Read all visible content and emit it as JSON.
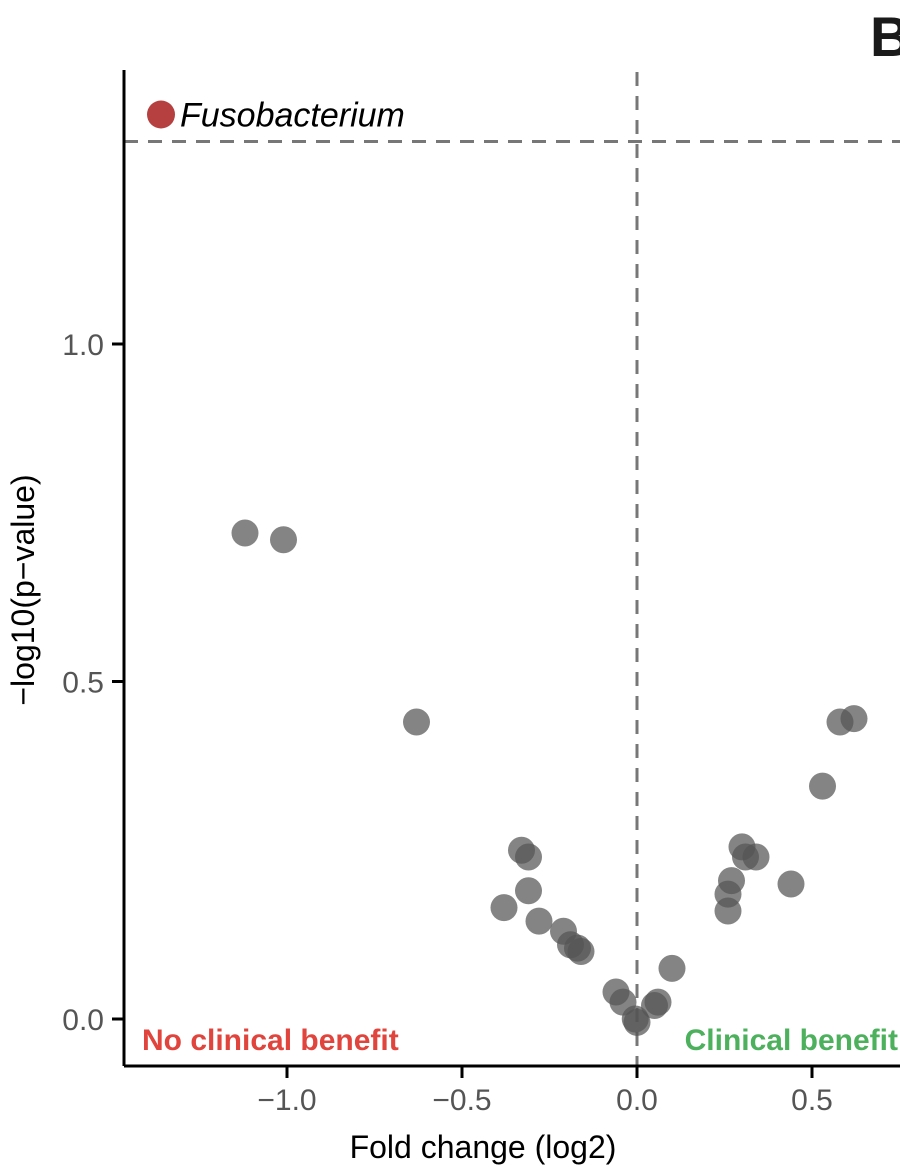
{
  "panel_label": "B",
  "chart_data": {
    "type": "scatter",
    "xlabel": "Fold change (log2)",
    "ylabel": "−log10(p−value)",
    "xlim": [
      -1.45,
      0.72
    ],
    "ylim": [
      -0.07,
      1.42
    ],
    "x_ticks": [
      -1.0,
      -0.5,
      0.0,
      0.5
    ],
    "x_tick_labels": [
      "−1.0",
      "−0.5",
      "0.0",
      "0.5"
    ],
    "y_ticks": [
      0.0,
      0.5,
      1.0
    ],
    "y_tick_labels": [
      "0.0",
      "0.5",
      "1.0"
    ],
    "grid": false,
    "reference_lines": {
      "vertical_x": 0.0,
      "horizontal_y": 1.3
    },
    "point_color": "#555555",
    "highlight_color": "#b5403f",
    "highlight": {
      "label": "Fusobacterium",
      "x": -1.36,
      "y": 1.34
    },
    "annotations": [
      {
        "text": "No clinical benefit",
        "color": "#e0443c",
        "position": "bottom-left"
      },
      {
        "text": "Clinical benefit",
        "color": "#4cb05c",
        "position": "bottom-right"
      }
    ],
    "points": [
      {
        "x": -1.12,
        "y": 0.72
      },
      {
        "x": -1.01,
        "y": 0.71
      },
      {
        "x": -0.63,
        "y": 0.44
      },
      {
        "x": -0.38,
        "y": 0.165
      },
      {
        "x": -0.33,
        "y": 0.25
      },
      {
        "x": -0.31,
        "y": 0.24
      },
      {
        "x": -0.31,
        "y": 0.19
      },
      {
        "x": -0.28,
        "y": 0.145
      },
      {
        "x": -0.21,
        "y": 0.13
      },
      {
        "x": -0.19,
        "y": 0.11
      },
      {
        "x": -0.17,
        "y": 0.105
      },
      {
        "x": -0.16,
        "y": 0.1
      },
      {
        "x": -0.06,
        "y": 0.04
      },
      {
        "x": -0.04,
        "y": 0.025
      },
      {
        "x": -0.005,
        "y": 0.0
      },
      {
        "x": 0.0,
        "y": -0.005
      },
      {
        "x": 0.05,
        "y": 0.02
      },
      {
        "x": 0.06,
        "y": 0.025
      },
      {
        "x": 0.1,
        "y": 0.075
      },
      {
        "x": 0.26,
        "y": 0.16
      },
      {
        "x": 0.26,
        "y": 0.185
      },
      {
        "x": 0.27,
        "y": 0.205
      },
      {
        "x": 0.3,
        "y": 0.255
      },
      {
        "x": 0.31,
        "y": 0.24
      },
      {
        "x": 0.34,
        "y": 0.24
      },
      {
        "x": 0.44,
        "y": 0.2
      },
      {
        "x": 0.53,
        "y": 0.345
      },
      {
        "x": 0.58,
        "y": 0.44
      },
      {
        "x": 0.62,
        "y": 0.445
      }
    ]
  }
}
